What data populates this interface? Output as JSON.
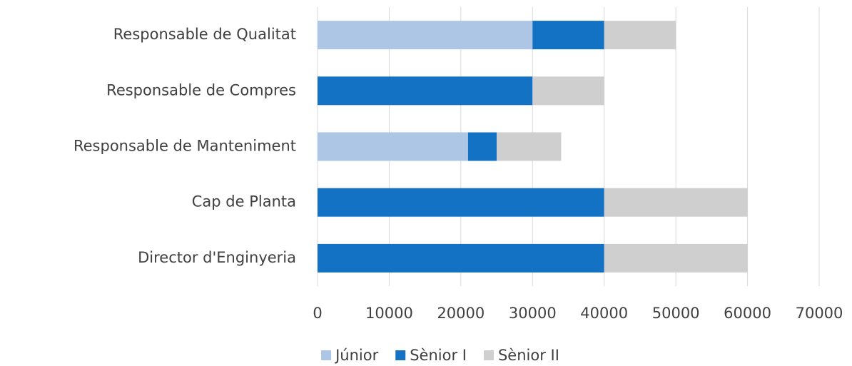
{
  "chart_data": {
    "type": "stacked-bar-horizontal",
    "categories": [
      "Responsable de Qualitat",
      "Responsable de Compres",
      "Responsable de Manteniment",
      "Cap de Planta",
      "Director d'Enginyeria"
    ],
    "series": [
      {
        "name": "Júnior",
        "color": "#aec6e6",
        "values": [
          30000,
          0,
          21000,
          0,
          0
        ]
      },
      {
        "name": "Sènior I",
        "color": "#1472c4",
        "values": [
          10000,
          30000,
          4000,
          40000,
          40000
        ]
      },
      {
        "name": "Sènior II",
        "color": "#d0cfcf",
        "values": [
          10000,
          10000,
          9000,
          20000,
          20000
        ]
      }
    ],
    "xlim": [
      0,
      70000
    ],
    "xticks": [
      0,
      10000,
      20000,
      30000,
      40000,
      50000,
      60000,
      70000
    ],
    "grid": true,
    "legend": "bottom"
  }
}
